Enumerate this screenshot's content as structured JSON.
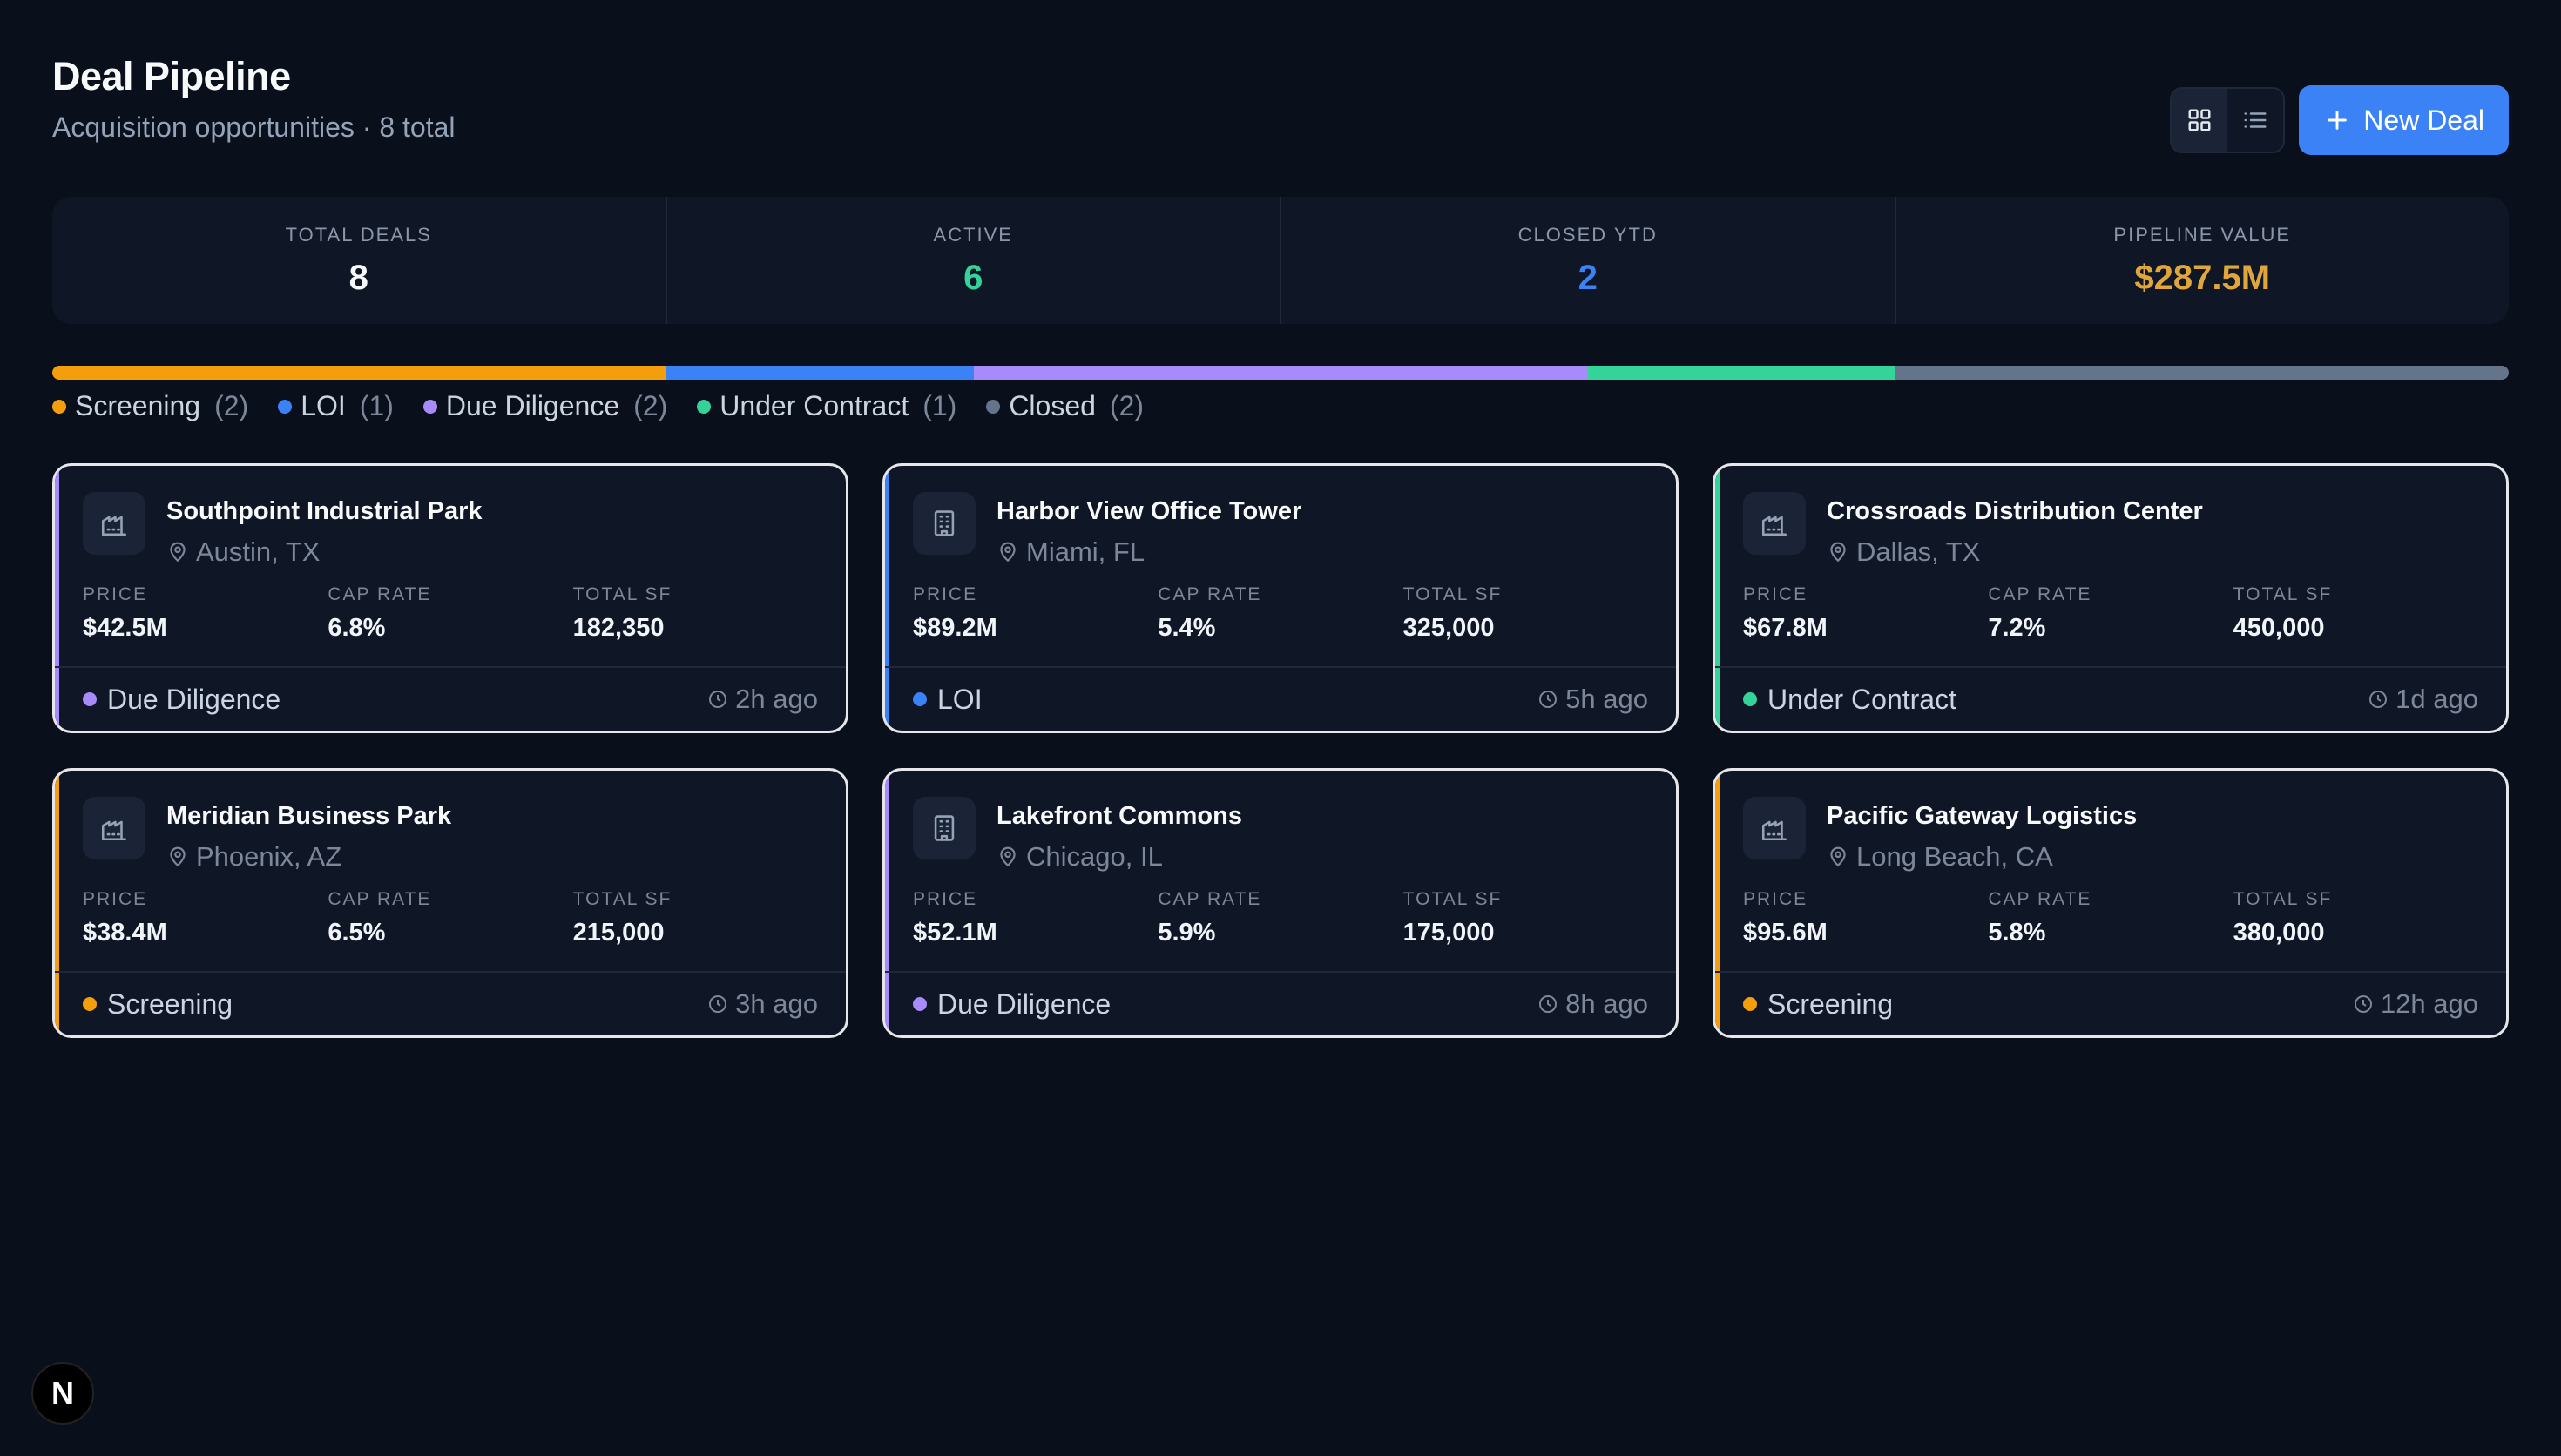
{
  "header": {
    "title": "Deal Pipeline",
    "subtitle": "Acquisition opportunities · 8 total",
    "new_deal_label": "New Deal"
  },
  "stats": [
    {
      "label": "TOTAL DEALS",
      "value": "8",
      "color": "#f8fafc"
    },
    {
      "label": "ACTIVE",
      "value": "6",
      "color": "#34d399"
    },
    {
      "label": "CLOSED YTD",
      "value": "2",
      "color": "#3b82f6"
    },
    {
      "label": "PIPELINE VALUE",
      "value": "$287.5M",
      "color": "#e0a63c"
    }
  ],
  "pipeline": [
    {
      "label": "Screening",
      "count": "(2)",
      "n": 2,
      "color": "#f59e0b"
    },
    {
      "label": "LOI",
      "count": "(1)",
      "n": 1,
      "color": "#3b82f6"
    },
    {
      "label": "Due Diligence",
      "count": "(2)",
      "n": 2,
      "color": "#a78bfa"
    },
    {
      "label": "Under Contract",
      "count": "(1)",
      "n": 1,
      "color": "#34d399"
    },
    {
      "label": "Closed",
      "count": "(2)",
      "n": 2,
      "color": "#64748b"
    }
  ],
  "metric_labels": {
    "price": "PRICE",
    "cap_rate": "CAP RATE",
    "total_sf": "TOTAL SF"
  },
  "deals": [
    {
      "name": "Southpoint Industrial Park",
      "location": "Austin, TX",
      "icon": "factory-icon",
      "price": "$42.5M",
      "cap_rate": "6.8%",
      "total_sf": "182,350",
      "status": "Due Diligence",
      "status_color": "#a78bfa",
      "time": "2h ago"
    },
    {
      "name": "Harbor View Office Tower",
      "location": "Miami, FL",
      "icon": "office-building-icon",
      "price": "$89.2M",
      "cap_rate": "5.4%",
      "total_sf": "325,000",
      "status": "LOI",
      "status_color": "#3b82f6",
      "time": "5h ago"
    },
    {
      "name": "Crossroads Distribution Center",
      "location": "Dallas, TX",
      "icon": "factory-icon",
      "price": "$67.8M",
      "cap_rate": "7.2%",
      "total_sf": "450,000",
      "status": "Under Contract",
      "status_color": "#34d399",
      "time": "1d ago"
    },
    {
      "name": "Meridian Business Park",
      "location": "Phoenix, AZ",
      "icon": "factory-icon",
      "price": "$38.4M",
      "cap_rate": "6.5%",
      "total_sf": "215,000",
      "status": "Screening",
      "status_color": "#f59e0b",
      "time": "3h ago"
    },
    {
      "name": "Lakefront Commons",
      "location": "Chicago, IL",
      "icon": "office-building-icon",
      "price": "$52.1M",
      "cap_rate": "5.9%",
      "total_sf": "175,000",
      "status": "Due Diligence",
      "status_color": "#a78bfa",
      "time": "8h ago"
    },
    {
      "name": "Pacific Gateway Logistics",
      "location": "Long Beach, CA",
      "icon": "factory-icon",
      "price": "$95.6M",
      "cap_rate": "5.8%",
      "total_sf": "380,000",
      "status": "Screening",
      "status_color": "#f59e0b",
      "time": "12h ago"
    }
  ],
  "badge": {
    "letter": "N"
  }
}
